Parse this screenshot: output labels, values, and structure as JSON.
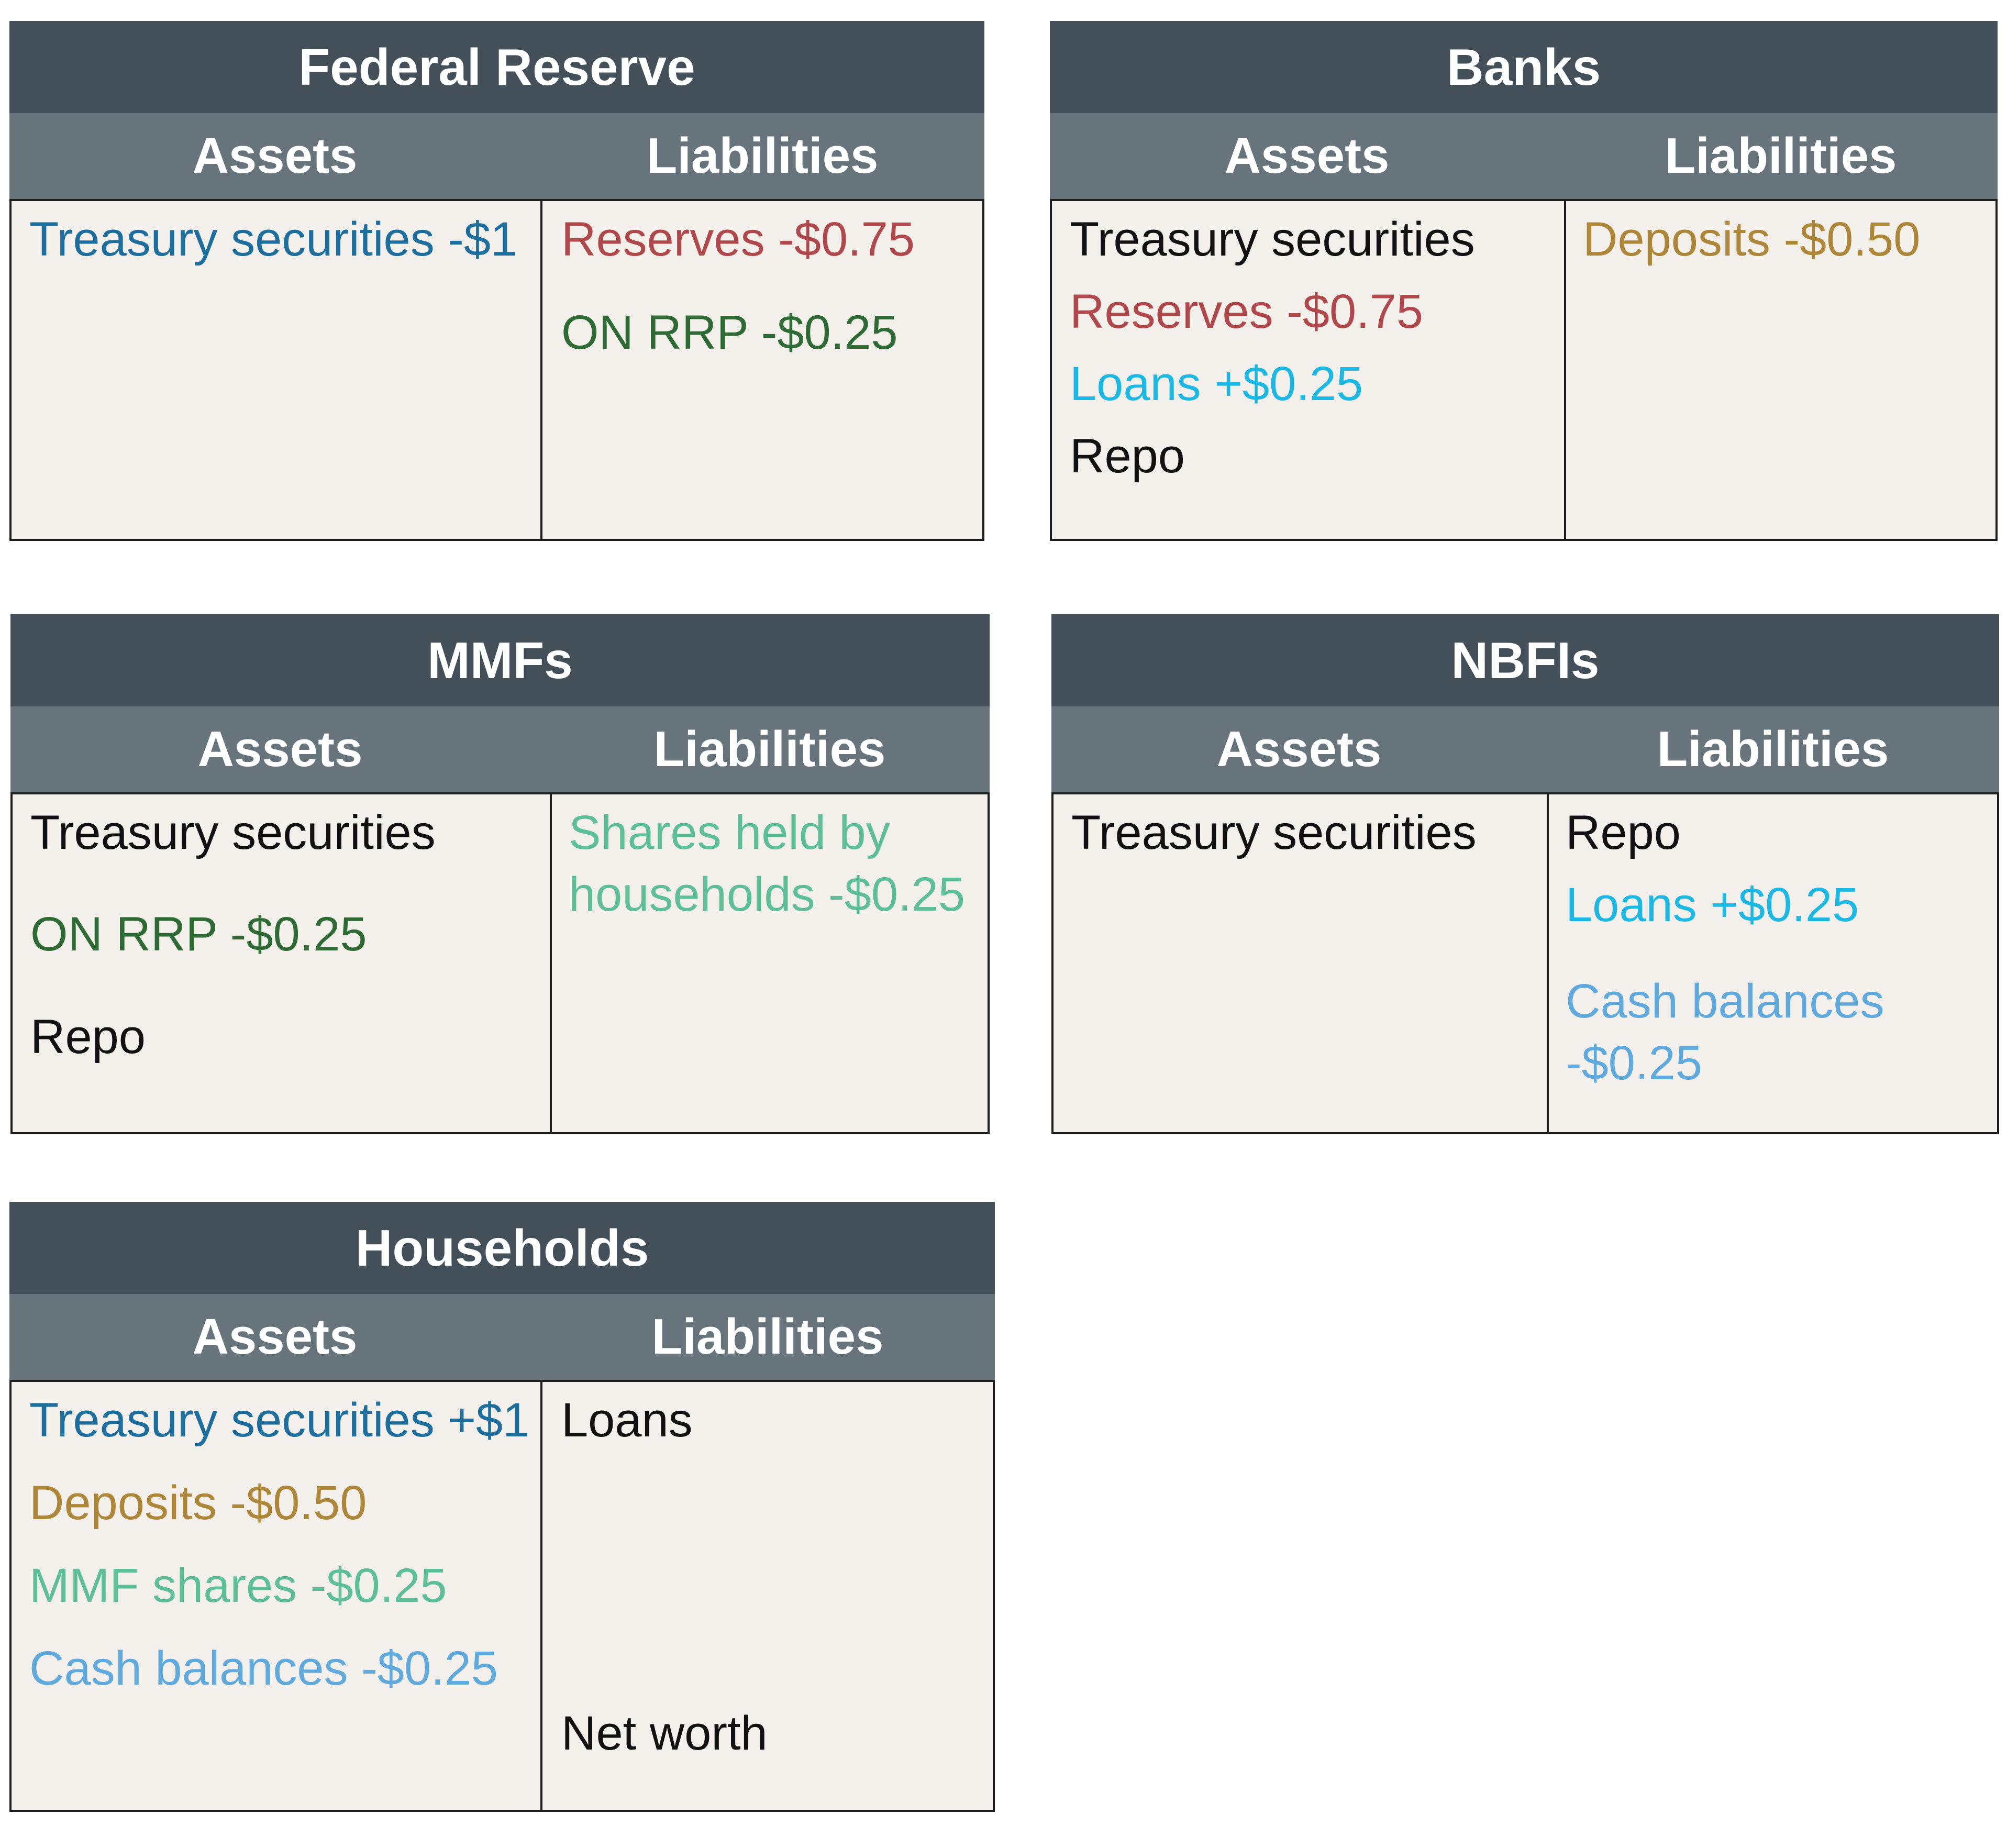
{
  "colors": {
    "title_bar": "#435059",
    "subheader_bar": "#67747c",
    "body_fill": "#f3f0eb",
    "treasury_change": "#1b6e9e",
    "reserves_change": "#b0474a",
    "on_rrp_change": "#2e6a33",
    "deposits_change": "#ad8637",
    "loans_change": "#1ab8e4",
    "mmf_shares_change": "#5dbf98",
    "cash_balances_change": "#5ea9dd"
  },
  "accounts": {
    "fed": {
      "title": "Federal Reserve",
      "assets_label": "Assets",
      "liabilities_label": "Liabilities",
      "assets": [
        "Treasury securities -$1"
      ],
      "liabilities": [
        "Reserves -$0.75",
        "ON RRP -$0.25"
      ]
    },
    "banks": {
      "title": "Banks",
      "assets_label": "Assets",
      "liabilities_label": "Liabilities",
      "assets": [
        "Treasury securities",
        "Reserves -$0.75",
        "Loans +$0.25",
        "Repo"
      ],
      "liabilities": [
        "Deposits -$0.50"
      ]
    },
    "mmfs": {
      "title": "MMFs",
      "assets_label": "Assets",
      "liabilities_label": "Liabilities",
      "assets": [
        "Treasury securities",
        "ON RRP -$0.25",
        "Repo"
      ],
      "liabilities": [
        "Shares held by",
        "households -$0.25"
      ]
    },
    "nbfis": {
      "title": "NBFIs",
      "assets_label": "Assets",
      "liabilities_label": "Liabilities",
      "assets": [
        "Treasury securities"
      ],
      "liabilities": [
        "Repo",
        "Loans +$0.25",
        "Cash balances",
        "-$0.25"
      ]
    },
    "households": {
      "title": "Households",
      "assets_label": "Assets",
      "liabilities_label": "Liabilities",
      "assets": [
        "Treasury securities +$1",
        "Deposits -$0.50",
        "MMF shares -$0.25",
        "Cash balances -$0.25"
      ],
      "liabilities": [
        "Loans",
        "Net worth"
      ]
    }
  }
}
